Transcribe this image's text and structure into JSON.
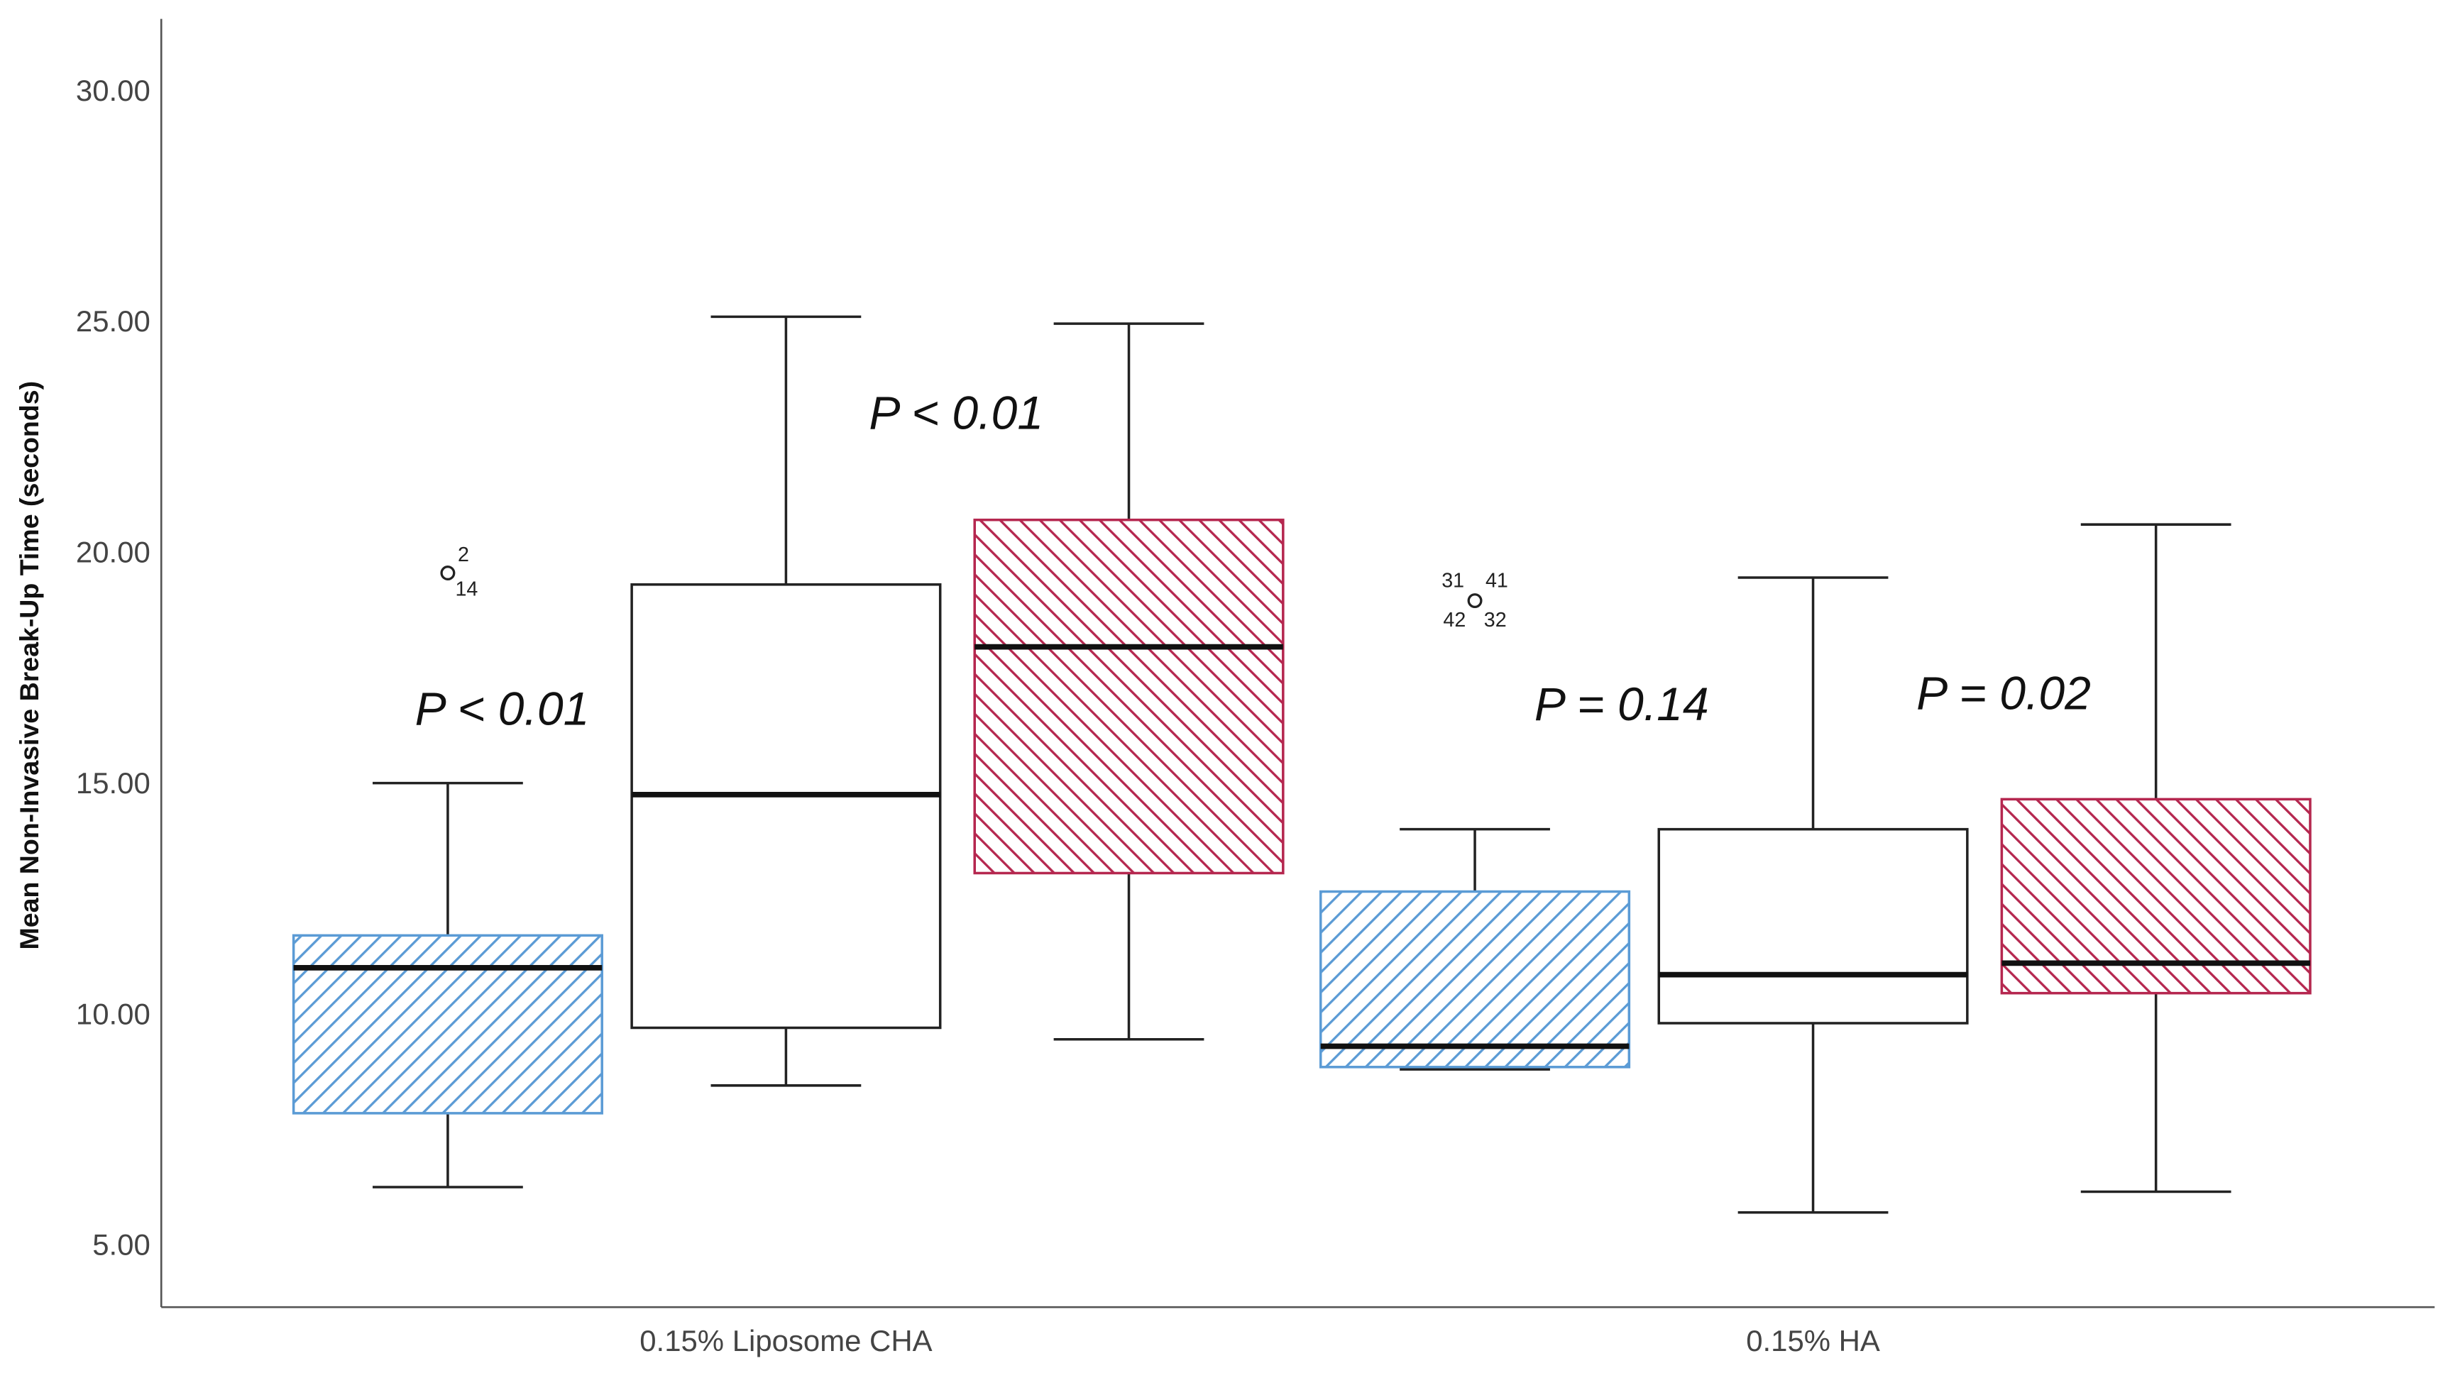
{
  "chart_data": {
    "type": "boxplot",
    "y_label": "Mean Non-Invasive Break-Up Time (seconds)",
    "categories": [
      "0.15% Liposome CHA",
      "0.15% HA"
    ],
    "ylim": [
      3.7,
      31.6
    ],
    "yticks": [
      {
        "value": 5,
        "label": "5.00"
      },
      {
        "value": 10,
        "label": "10.00"
      },
      {
        "value": 15,
        "label": "15.00"
      },
      {
        "value": 20,
        "label": "20.00"
      },
      {
        "value": 25,
        "label": "25.00"
      },
      {
        "value": 30,
        "label": "30.00"
      }
    ],
    "series": [
      {
        "color": "#5b9bd5",
        "hatch": "back",
        "boxes": [
          {
            "whisker_low": 6.3,
            "q1": 7.9,
            "median": 11.05,
            "q3": 11.75,
            "whisker_high": 15.05,
            "outliers": [
              {
                "value": 19.6,
                "labels": [
                  "2",
                  "14"
                ]
              }
            ]
          },
          {
            "whisker_low": 8.85,
            "q1": 8.9,
            "median": 9.35,
            "q3": 12.7,
            "whisker_high": 14.05,
            "outliers": [
              {
                "value": 19.0,
                "labels": [
                  "31",
                  "41",
                  "42",
                  "32"
                ]
              }
            ]
          }
        ]
      },
      {
        "color": "#000000",
        "hatch": "none",
        "boxes": [
          {
            "whisker_low": 8.5,
            "q1": 9.75,
            "median": 14.8,
            "q3": 19.35,
            "whisker_high": 25.15,
            "outliers": []
          },
          {
            "whisker_low": 5.75,
            "q1": 9.85,
            "median": 10.9,
            "q3": 14.05,
            "whisker_high": 19.5,
            "outliers": []
          }
        ]
      },
      {
        "color": "#b5274f",
        "hatch": "forward",
        "boxes": [
          {
            "whisker_low": 9.5,
            "q1": 13.1,
            "median": 18.0,
            "q3": 20.75,
            "whisker_high": 25.0,
            "outliers": []
          },
          {
            "whisker_low": 6.2,
            "q1": 10.5,
            "median": 11.15,
            "q3": 14.7,
            "whisker_high": 20.65,
            "outliers": []
          }
        ]
      }
    ],
    "annotations": [
      "P < 0.01",
      "P < 0.01",
      "P = 0.14",
      "P = 0.02"
    ]
  }
}
